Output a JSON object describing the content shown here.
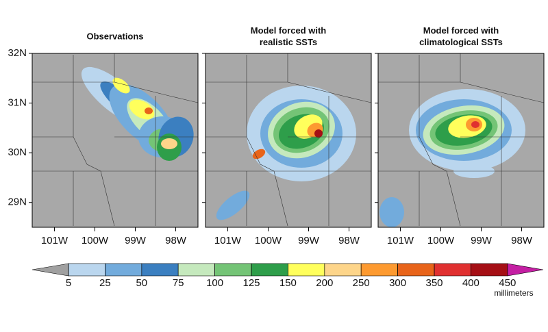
{
  "panels": [
    {
      "title": "Observations"
    },
    {
      "title": "Model forced with\nrealistic SSTs"
    },
    {
      "title": "Model forced with\nclimatological SSTs"
    }
  ],
  "lat_ticks": [
    {
      "value": 32,
      "label": "32N"
    },
    {
      "value": 31,
      "label": "31N"
    },
    {
      "value": 30,
      "label": "30N"
    },
    {
      "value": 29,
      "label": "29N"
    }
  ],
  "lon_ticks": [
    {
      "value": -101,
      "label": "101W"
    },
    {
      "value": -100,
      "label": "100W"
    },
    {
      "value": -99,
      "label": "99W"
    },
    {
      "value": -98,
      "label": "98W"
    }
  ],
  "latlim": [
    28.5,
    32
  ],
  "lonlim": [
    -101.55,
    -97.45
  ],
  "colorbar": {
    "levels": [
      5,
      25,
      50,
      75,
      100,
      125,
      150,
      200,
      250,
      300,
      350,
      400,
      450
    ],
    "colors": [
      "#bad6ee",
      "#72abdc",
      "#3b7fc0",
      "#c5e9bd",
      "#74c476",
      "#2e9e4a",
      "#ffff5c",
      "#fdd58a",
      "#fd9a30",
      "#e8641a",
      "#e03030",
      "#a50f15"
    ],
    "under_color": "#a0a0a0",
    "over_color": "#c41fa3",
    "unit": "millimeters"
  }
}
